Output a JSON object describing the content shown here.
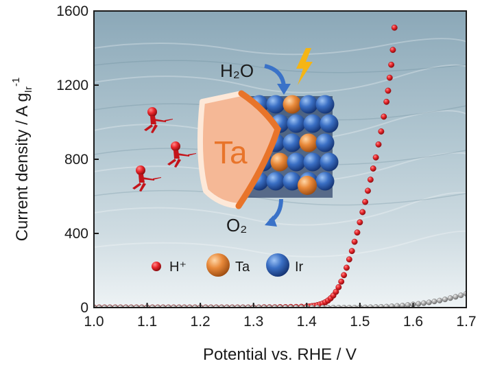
{
  "chart_data": {
    "type": "scatter",
    "title": "",
    "xlabel": "Potential vs. RHE / V",
    "ylabel": "Current density / A g",
    "ylabel_sub": "Ir",
    "ylabel_sup": "-1",
    "xlim": [
      1.0,
      1.7
    ],
    "ylim": [
      0,
      1600
    ],
    "x_ticks": [
      "1.0",
      "1.1",
      "1.2",
      "1.3",
      "1.4",
      "1.5",
      "1.6",
      "1.7"
    ],
    "y_ticks": [
      "0",
      "400",
      "800",
      "1200",
      "1600"
    ],
    "grid": false,
    "series": [
      {
        "color": "#e8262b",
        "x": [
          1.0,
          1.01,
          1.02,
          1.03,
          1.04,
          1.05,
          1.06,
          1.07,
          1.08,
          1.09,
          1.1,
          1.11,
          1.12,
          1.13,
          1.14,
          1.15,
          1.16,
          1.17,
          1.18,
          1.19,
          1.2,
          1.21,
          1.22,
          1.23,
          1.24,
          1.25,
          1.26,
          1.27,
          1.28,
          1.29,
          1.3,
          1.31,
          1.32,
          1.33,
          1.34,
          1.35,
          1.36,
          1.37,
          1.38,
          1.39,
          1.4,
          1.405,
          1.41,
          1.415,
          1.42,
          1.425,
          1.43,
          1.435,
          1.44,
          1.445,
          1.45,
          1.455,
          1.46,
          1.465,
          1.47,
          1.475,
          1.48,
          1.485,
          1.49,
          1.495,
          1.5,
          1.505,
          1.51,
          1.515,
          1.52,
          1.525,
          1.53,
          1.535,
          1.54,
          1.545,
          1.55,
          1.553,
          1.556,
          1.559,
          1.562,
          1.565
        ],
        "y": [
          0,
          0,
          0,
          0,
          0,
          0,
          0,
          0,
          0,
          0,
          0,
          0,
          0,
          0,
          0,
          0,
          0,
          0,
          0,
          0,
          0,
          0,
          0,
          0,
          0,
          0,
          0,
          0,
          0,
          0,
          0,
          0,
          1,
          1,
          1,
          2,
          2,
          3,
          3,
          4,
          5,
          6,
          8,
          10,
          13,
          17,
          22,
          29,
          38,
          50,
          65,
          85,
          110,
          140,
          175,
          215,
          260,
          305,
          355,
          405,
          460,
          515,
          570,
          630,
          690,
          750,
          810,
          880,
          950,
          1030,
          1110,
          1170,
          1240,
          1310,
          1390,
          1510
        ]
      },
      {
        "color": "#a9a9a9",
        "x": [
          1.0,
          1.01,
          1.02,
          1.03,
          1.04,
          1.05,
          1.06,
          1.07,
          1.08,
          1.09,
          1.1,
          1.11,
          1.12,
          1.13,
          1.14,
          1.15,
          1.16,
          1.17,
          1.18,
          1.19,
          1.2,
          1.21,
          1.22,
          1.23,
          1.24,
          1.25,
          1.26,
          1.27,
          1.28,
          1.29,
          1.3,
          1.31,
          1.32,
          1.33,
          1.34,
          1.35,
          1.36,
          1.37,
          1.38,
          1.39,
          1.4,
          1.41,
          1.42,
          1.43,
          1.44,
          1.45,
          1.46,
          1.47,
          1.48,
          1.49,
          1.5,
          1.51,
          1.52,
          1.53,
          1.54,
          1.55,
          1.56,
          1.57,
          1.58,
          1.59,
          1.6,
          1.61,
          1.62,
          1.63,
          1.64,
          1.65,
          1.66,
          1.67,
          1.68,
          1.69,
          1.7
        ],
        "y": [
          0,
          0,
          0,
          0,
          0,
          0,
          0,
          0,
          0,
          0,
          0,
          0,
          0,
          0,
          0,
          0,
          0,
          0,
          0,
          0,
          0,
          0,
          0,
          0,
          0,
          0,
          0,
          0,
          0,
          0,
          0,
          0,
          0,
          0,
          0,
          0,
          0,
          0,
          0,
          0,
          0,
          0,
          0,
          0,
          0,
          0,
          0,
          0,
          0,
          0,
          1,
          1,
          2,
          3,
          4,
          5,
          7,
          9,
          11,
          14,
          17,
          20,
          24,
          28,
          33,
          38,
          44,
          51,
          58,
          66,
          75
        ]
      }
    ]
  },
  "inset": {
    "water": "H₂O",
    "oxygen": "O₂",
    "block_label": "Ta",
    "legend": [
      {
        "label": "H⁺",
        "color": "#e8262b",
        "icon": "red-dot"
      },
      {
        "label": "Ta",
        "color": "#e8893a",
        "icon": "orange-sphere"
      },
      {
        "label": "Ir",
        "color": "#3a6fc4",
        "icon": "blue-sphere"
      }
    ],
    "figure_icons": [
      "runner-icon",
      "runner-icon",
      "runner-icon",
      "lightning-icon"
    ]
  }
}
